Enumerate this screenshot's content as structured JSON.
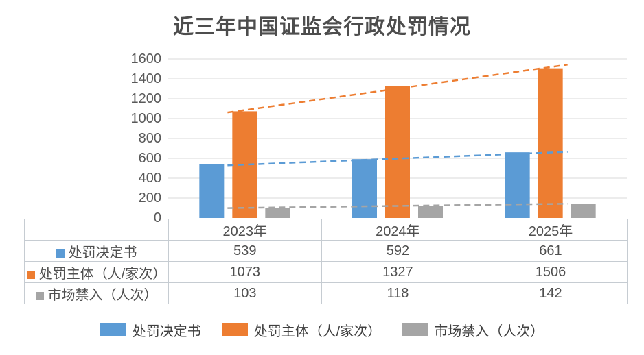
{
  "chart_data": {
    "type": "bar",
    "title": "近三年中国证监会行政处罚情况",
    "categories": [
      "2023年",
      "2024年",
      "2025年"
    ],
    "series": [
      {
        "name": "处罚决定书",
        "values": [
          539,
          592,
          661
        ],
        "color": "#5B9BD5",
        "trendline": true
      },
      {
        "name": "处罚主体（人/家次）",
        "values": [
          1073,
          1327,
          1506
        ],
        "color": "#ED7D31",
        "trendline": true
      },
      {
        "name": "市场禁入（人次）",
        "values": [
          103,
          118,
          142
        ],
        "color": "#A5A5A5",
        "trendline": true
      }
    ],
    "ylim": [
      0,
      1600
    ],
    "ytick_step": 200,
    "yticks": [
      0,
      200,
      400,
      600,
      800,
      1000,
      1200,
      1400,
      1600
    ],
    "grid": true,
    "gridline_color": "#D9D9D9",
    "trendline_style": "dashed",
    "legend_position": "bottom",
    "data_table": true
  },
  "table": {
    "col_headers": [
      "2023年",
      "2024年",
      "2025年"
    ],
    "rows": [
      {
        "label": "处罚决定书",
        "key_color": "#5B9BD5",
        "values": [
          "539",
          "592",
          "661"
        ]
      },
      {
        "label": "处罚主体（人/家次）",
        "key_color": "#ED7D31",
        "values": [
          "1073",
          "1327",
          "1506"
        ]
      },
      {
        "label": "市场禁入（人次）",
        "key_color": "#A5A5A5",
        "values": [
          "103",
          "118",
          "142"
        ]
      }
    ]
  },
  "legend": {
    "items": [
      {
        "label": "处罚决定书",
        "color": "#5B9BD5"
      },
      {
        "label": "处罚主体（人/家次）",
        "color": "#ED7D31"
      },
      {
        "label": "市场禁入（人次）",
        "color": "#A5A5A5"
      }
    ]
  }
}
